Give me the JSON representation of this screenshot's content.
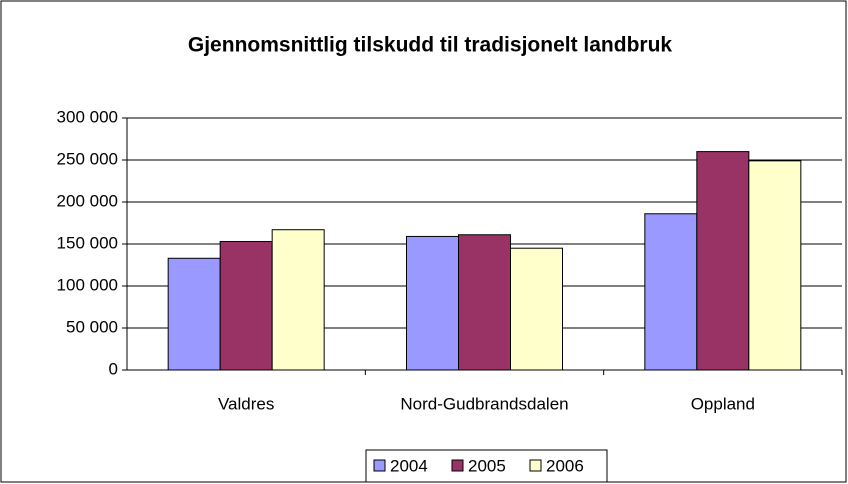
{
  "chart_data": {
    "type": "bar",
    "title": "Gjennomsnittlig tilskudd til tradisjonelt landbruk",
    "categories": [
      "Valdres",
      "Nord-Gudbrandsdalen",
      "Oppland"
    ],
    "series": [
      {
        "name": "2004",
        "color": "#9999ff",
        "values": [
          133000,
          159000,
          186000
        ]
      },
      {
        "name": "2005",
        "color": "#993366",
        "values": [
          153000,
          161000,
          260000
        ]
      },
      {
        "name": "2006",
        "color": "#ffffcc",
        "values": [
          167000,
          145000,
          249000
        ]
      }
    ],
    "ylim": [
      0,
      300000
    ],
    "yticks": [
      0,
      {
        "value": 50000,
        "label": "50 000"
      },
      {
        "value": 100000,
        "label": "100 000"
      },
      {
        "value": 150000,
        "label": "150 000"
      },
      {
        "value": 200000,
        "label": "200 000"
      },
      {
        "value": 250000,
        "label": "250 000"
      },
      {
        "value": 300000,
        "label": "300 000"
      }
    ],
    "grid": true,
    "legend": "bottom"
  }
}
